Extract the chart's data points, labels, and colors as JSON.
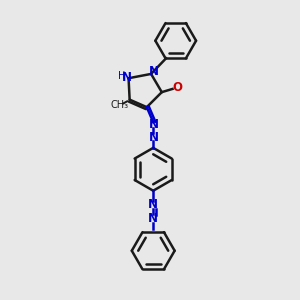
{
  "background_color": "#e8e8e8",
  "bond_color": "#1a1a1a",
  "blue": "#0000cc",
  "red": "#cc0000",
  "lw": 1.8,
  "xlim": [
    0,
    10
  ],
  "ylim": [
    0,
    14
  ],
  "figsize": [
    3.0,
    3.0
  ],
  "dpi": 100
}
